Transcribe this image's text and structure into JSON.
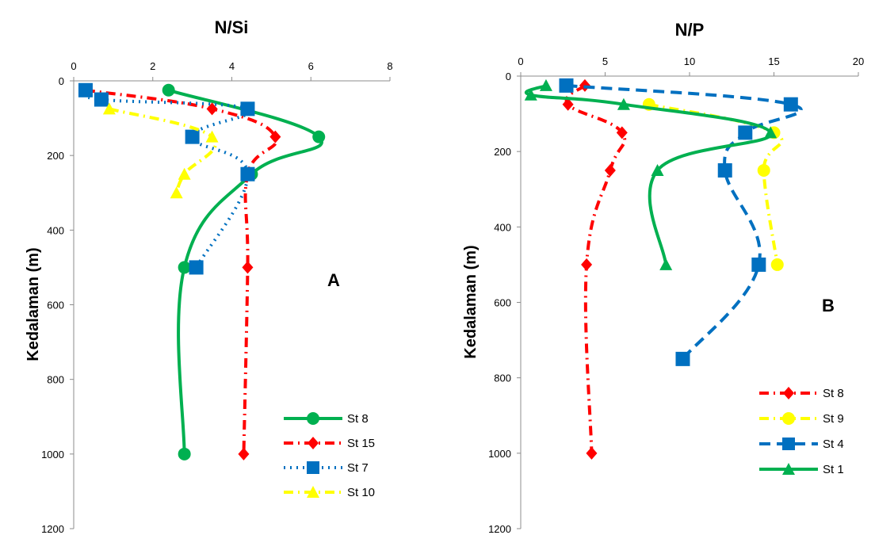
{
  "chart_data": [
    {
      "type": "line",
      "title": "N/Si",
      "panel_label": "A",
      "ylabel": "Kedalaman (m)",
      "xlabel": "",
      "xlim": [
        0,
        8
      ],
      "ylim": [
        0,
        1200
      ],
      "y_inverted": true,
      "x_ticks": [
        "0",
        "2",
        "4",
        "6",
        "8"
      ],
      "y_ticks": [
        "0",
        "200",
        "400",
        "600",
        "800",
        "1000",
        "1200"
      ],
      "x_axis_position": "top",
      "grid": false,
      "legend_position": "bottom-right",
      "series": [
        {
          "name": "St 8",
          "color": "#00b050",
          "line_style": "solid",
          "marker": "circle",
          "points": [
            [
              2.4,
              25
            ],
            [
              6.2,
              150
            ],
            [
              4.5,
              250
            ],
            [
              2.8,
              500
            ],
            [
              2.8,
              1000
            ]
          ]
        },
        {
          "name": "St 15",
          "color": "#ff0000",
          "line_style": "dash-dot",
          "marker": "diamond",
          "points": [
            [
              0.3,
              25
            ],
            [
              3.5,
              75
            ],
            [
              5.1,
              150
            ],
            [
              4.4,
              250
            ],
            [
              4.4,
              500
            ],
            [
              4.3,
              1000
            ]
          ]
        },
        {
          "name": "St 7",
          "color": "#0070c0",
          "line_style": "dotted",
          "marker": "square",
          "points": [
            [
              0.3,
              25
            ],
            [
              0.7,
              50
            ],
            [
              4.4,
              75
            ],
            [
              3.0,
              150
            ],
            [
              4.4,
              250
            ],
            [
              3.1,
              500
            ]
          ]
        },
        {
          "name": "St 10",
          "color": "#ffff00",
          "line_style": "dash-dot",
          "marker": "triangle",
          "points": [
            [
              0.9,
              75
            ],
            [
              3.5,
              150
            ],
            [
              2.8,
              250
            ],
            [
              2.6,
              300
            ]
          ]
        }
      ]
    },
    {
      "type": "line",
      "title": "N/P",
      "panel_label": "B",
      "ylabel": "Kedalaman (m)",
      "xlabel": "",
      "xlim": [
        0,
        20
      ],
      "ylim": [
        0,
        1200
      ],
      "y_inverted": true,
      "x_ticks": [
        "0",
        "5",
        "10",
        "15",
        "20"
      ],
      "y_ticks": [
        "0",
        "200",
        "400",
        "600",
        "800",
        "1000",
        "1200"
      ],
      "x_axis_position": "top",
      "grid": false,
      "legend_position": "bottom-right",
      "series": [
        {
          "name": "St 8",
          "color": "#ff0000",
          "line_style": "dash-dot",
          "marker": "diamond",
          "points": [
            [
              3.8,
              25
            ],
            [
              2.8,
              75
            ],
            [
              6.0,
              150
            ],
            [
              5.3,
              250
            ],
            [
              3.9,
              500
            ],
            [
              4.2,
              1000
            ]
          ]
        },
        {
          "name": "St 9",
          "color": "#ffff00",
          "line_style": "dash-dot",
          "marker": "circle",
          "points": [
            [
              7.6,
              75
            ],
            [
              15.0,
              150
            ],
            [
              14.4,
              250
            ],
            [
              15.2,
              500
            ]
          ]
        },
        {
          "name": "St 4",
          "color": "#0070c0",
          "line_style": "dashed",
          "marker": "square",
          "points": [
            [
              2.7,
              25
            ],
            [
              16.0,
              75
            ],
            [
              13.3,
              150
            ],
            [
              12.1,
              250
            ],
            [
              14.1,
              500
            ],
            [
              9.6,
              750
            ]
          ]
        },
        {
          "name": "St 1",
          "color": "#00b050",
          "line_style": "solid",
          "marker": "triangle",
          "points": [
            [
              1.5,
              25
            ],
            [
              0.6,
              50
            ],
            [
              6.1,
              75
            ],
            [
              14.8,
              150
            ],
            [
              8.1,
              250
            ],
            [
              8.6,
              500
            ]
          ]
        }
      ]
    }
  ]
}
